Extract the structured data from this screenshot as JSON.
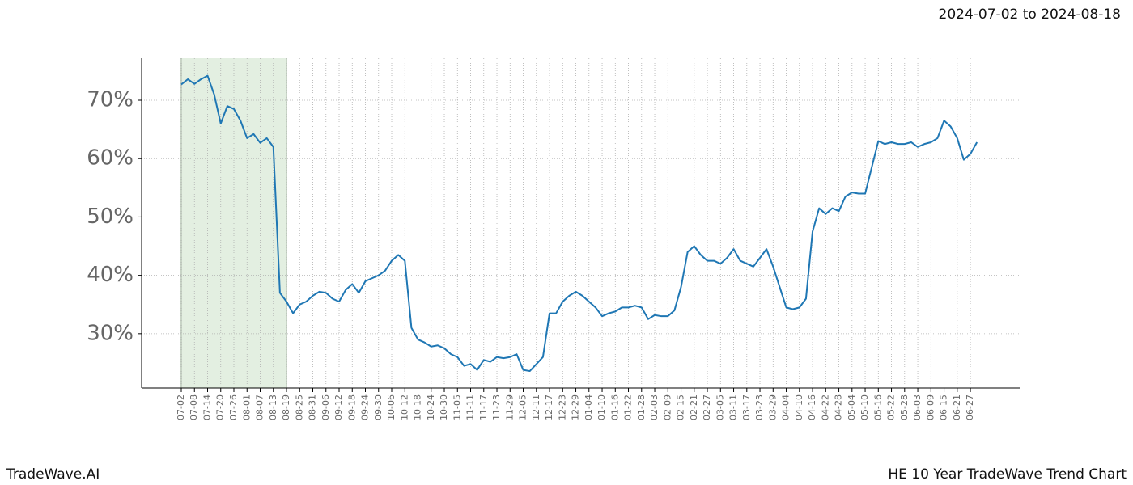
{
  "date_range": "2024-07-02 to 2024-08-18",
  "brand": "TradeWave.AI",
  "chart_title": "HE 10 Year TradeWave Trend Chart",
  "chart_data": {
    "type": "line",
    "categories": [
      "07-02",
      null,
      "07-08",
      null,
      "07-14",
      null,
      "07-20",
      null,
      "07-26",
      null,
      "08-01",
      null,
      "08-07",
      null,
      "08-13",
      null,
      "08-19",
      null,
      "08-25",
      null,
      "08-31",
      null,
      "09-06",
      null,
      "09-12",
      null,
      "09-18",
      null,
      "09-24",
      null,
      "09-30",
      null,
      "10-06",
      null,
      "10-12",
      null,
      "10-18",
      null,
      "10-24",
      null,
      "10-30",
      null,
      "11-05",
      null,
      "11-11",
      null,
      "11-17",
      null,
      "11-23",
      null,
      "11-29",
      null,
      "12-05",
      null,
      "12-11",
      null,
      "12-17",
      null,
      "12-23",
      null,
      "12-29",
      null,
      "01-04",
      null,
      "01-10",
      null,
      "01-16",
      null,
      "01-22",
      null,
      "01-28",
      null,
      "02-03",
      null,
      "02-09",
      null,
      "02-15",
      null,
      "02-21",
      null,
      "02-27",
      null,
      "03-05",
      null,
      "03-11",
      null,
      "03-17",
      null,
      "03-23",
      null,
      "03-29",
      null,
      "04-04",
      null,
      "04-10",
      null,
      "04-16",
      null,
      "04-22",
      null,
      "04-28",
      null,
      "05-04",
      null,
      "05-10",
      null,
      "05-16",
      null,
      "05-22",
      null,
      "05-28",
      null,
      "06-03",
      null,
      "06-09",
      null,
      "06-15",
      null,
      "06-21",
      null,
      "06-27",
      null
    ],
    "series": [
      {
        "color": "#1f77b4",
        "values": [
          72.7,
          73.6,
          72.8,
          73.6,
          74.2,
          71,
          66,
          69,
          68.5,
          66.5,
          63.5,
          64.2,
          62.7,
          63.5,
          62,
          37,
          35.5,
          33.5,
          35,
          35.5,
          36.5,
          37.2,
          37,
          36,
          35.5,
          37.5,
          38.5,
          37,
          39,
          39.5,
          40,
          40.8,
          42.5,
          43.5,
          42.5,
          31,
          29,
          28.5,
          27.8,
          28,
          27.5,
          26.5,
          26,
          24.5,
          24.8,
          23.8,
          25.5,
          25.2,
          26,
          25.8,
          26,
          26.5,
          23.8,
          23.6,
          24.8,
          26,
          33.5,
          33.5,
          35.5,
          36.5,
          37.2,
          36.5,
          35.5,
          34.5,
          33,
          33.5,
          33.8,
          34.5,
          34.5,
          34.8,
          34.5,
          32.5,
          33.2,
          33,
          33,
          34,
          38,
          44,
          45,
          43.5,
          42.5,
          42.5,
          42,
          43,
          44.5,
          42.5,
          42,
          41.5,
          43,
          44.5,
          41.5,
          38,
          34.5,
          34.2,
          34.5,
          36,
          47.5,
          51.5,
          50.5,
          51.5,
          51,
          53.5,
          54.2,
          54,
          54,
          58.5,
          63,
          62.5,
          62.8,
          62.5,
          62.5,
          62.8,
          62,
          62.5,
          62.8,
          63.5,
          66.5,
          65.5,
          63.5,
          59.8,
          60.8,
          62.8
        ]
      }
    ],
    "highlight": {
      "start": "07-02",
      "end": "08-19",
      "color": "#e3efe1"
    },
    "xlim": [
      -6.03,
      127.5
    ],
    "ylim": [
      20.7,
      77.2
    ],
    "yticks": [
      {
        "value": 30,
        "label": "30%"
      },
      {
        "value": 40,
        "label": "40%"
      },
      {
        "value": 50,
        "label": "50%"
      },
      {
        "value": 60,
        "label": "60%"
      },
      {
        "value": 70,
        "label": "70%"
      }
    ],
    "grid": true
  }
}
